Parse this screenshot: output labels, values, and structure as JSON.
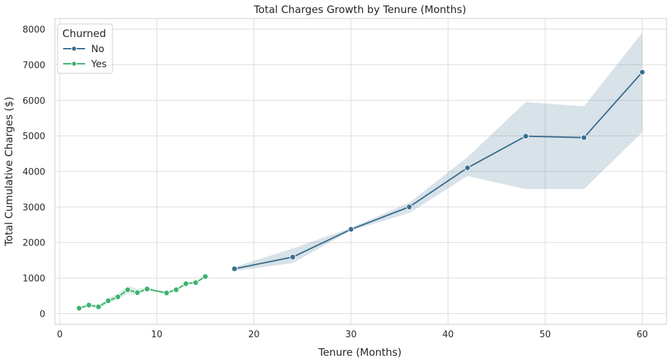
{
  "chart_data": {
    "type": "line",
    "title": "Total Charges Growth by Tenure (Months)",
    "xlabel": "Tenure (Months)",
    "ylabel": "Total Cumulative Charges ($)",
    "xlim": [
      -0.5,
      62.5
    ],
    "ylim": [
      -300,
      8300
    ],
    "xticks": [
      0,
      10,
      20,
      30,
      40,
      50,
      60
    ],
    "yticks": [
      0,
      1000,
      2000,
      3000,
      4000,
      5000,
      6000,
      7000,
      8000
    ],
    "grid": true,
    "legend": {
      "title": "Churned",
      "placement": "top-left"
    },
    "series": [
      {
        "name": "No",
        "color": "#3b6e8f",
        "x": [
          18,
          24,
          30,
          36,
          42,
          48,
          54,
          60
        ],
        "y": [
          1260,
          1590,
          2370,
          3000,
          4100,
          4990,
          4950,
          6790
        ],
        "ci_low": [
          1200,
          1420,
          2330,
          2830,
          3870,
          3500,
          3500,
          5100
        ],
        "ci_high": [
          1310,
          1830,
          2410,
          3120,
          4400,
          5950,
          5830,
          7900
        ]
      },
      {
        "name": "Yes",
        "color": "#3cb371",
        "x": [
          2,
          3,
          4,
          5,
          6,
          7,
          8,
          9,
          11,
          12,
          13,
          14,
          15
        ],
        "y": [
          150,
          240,
          190,
          360,
          470,
          670,
          590,
          690,
          580,
          670,
          840,
          870,
          1040
        ],
        "ci_low": [
          110,
          190,
          150,
          280,
          400,
          560,
          520,
          660,
          560,
          640,
          810,
          850,
          1010
        ],
        "ci_high": [
          200,
          290,
          240,
          440,
          560,
          780,
          700,
          730,
          610,
          700,
          870,
          900,
          1070
        ]
      }
    ]
  }
}
